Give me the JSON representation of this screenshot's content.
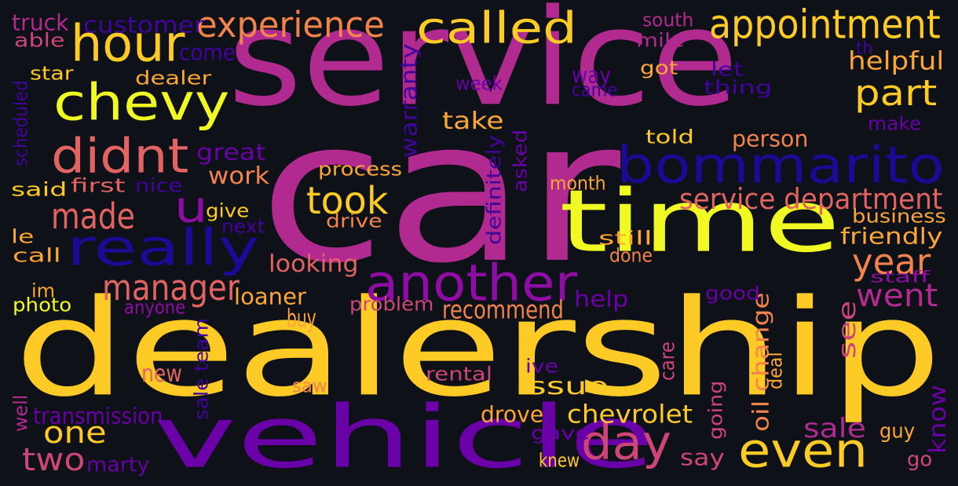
{
  "background": "#0e1117",
  "palette": {
    "yellow": "#f0f921",
    "gold": "#fdca26",
    "amber": "#fca636",
    "orange": "#f2844b",
    "salmon": "#e16462",
    "rose": "#cc4778",
    "magenta": "#b12a90",
    "purple": "#8f0da4",
    "violet": "#6a00a8",
    "indigo": "#41049d",
    "navy": "#1a0a94"
  },
  "words": [
    {
      "text": "service",
      "color": "magenta"
    },
    {
      "text": "car",
      "color": "magenta"
    },
    {
      "text": "dealership",
      "color": "gold"
    },
    {
      "text": "time",
      "color": "yellow"
    },
    {
      "text": "vehicle",
      "color": "violet"
    },
    {
      "text": "bommarito",
      "color": "navy"
    },
    {
      "text": "another",
      "color": "purple"
    },
    {
      "text": "really",
      "color": "navy"
    },
    {
      "text": "chevy",
      "color": "yellow"
    },
    {
      "text": "didnt",
      "color": "salmon"
    },
    {
      "text": "hour",
      "color": "gold"
    },
    {
      "text": "called",
      "color": "gold"
    },
    {
      "text": "appointment",
      "color": "gold"
    },
    {
      "text": "experience",
      "color": "orange"
    },
    {
      "text": "even",
      "color": "gold"
    },
    {
      "text": "day",
      "color": "rose"
    },
    {
      "text": "u",
      "color": "purple"
    },
    {
      "text": "took",
      "color": "gold"
    },
    {
      "text": "made",
      "color": "salmon"
    },
    {
      "text": "part",
      "color": "gold"
    },
    {
      "text": "manager",
      "color": "salmon"
    },
    {
      "text": "year",
      "color": "orange"
    },
    {
      "text": "went",
      "color": "magenta"
    },
    {
      "text": "service department",
      "color": "salmon"
    },
    {
      "text": "one",
      "color": "gold"
    },
    {
      "text": "two",
      "color": "rose"
    },
    {
      "text": "customer",
      "color": "indigo"
    },
    {
      "text": "truck",
      "color": "magenta"
    },
    {
      "text": "south",
      "color": "magenta"
    },
    {
      "text": "able",
      "color": "rose"
    },
    {
      "text": "mile",
      "color": "magenta"
    },
    {
      "text": "come",
      "color": "indigo"
    },
    {
      "text": "th",
      "color": "indigo"
    },
    {
      "text": "star",
      "color": "gold"
    },
    {
      "text": "warranty",
      "color": "indigo"
    },
    {
      "text": "got",
      "color": "amber"
    },
    {
      "text": "let",
      "color": "indigo"
    },
    {
      "text": "helpful",
      "color": "amber"
    },
    {
      "text": "scheduled",
      "color": "indigo"
    },
    {
      "text": "dealer",
      "color": "amber"
    },
    {
      "text": "way",
      "color": "violet"
    },
    {
      "text": "thing",
      "color": "indigo"
    },
    {
      "text": "week",
      "color": "violet"
    },
    {
      "text": "came",
      "color": "indigo"
    },
    {
      "text": "take",
      "color": "amber"
    },
    {
      "text": "make",
      "color": "violet"
    },
    {
      "text": "told",
      "color": "gold"
    },
    {
      "text": "person",
      "color": "orange"
    },
    {
      "text": "great",
      "color": "violet"
    },
    {
      "text": "definitely",
      "color": "indigo"
    },
    {
      "text": "asked",
      "color": "violet"
    },
    {
      "text": "process",
      "color": "amber"
    },
    {
      "text": "work",
      "color": "orange"
    },
    {
      "text": "said",
      "color": "gold"
    },
    {
      "text": "first",
      "color": "salmon"
    },
    {
      "text": "nice",
      "color": "indigo"
    },
    {
      "text": "month",
      "color": "amber"
    },
    {
      "text": "give",
      "color": "gold"
    },
    {
      "text": "drive",
      "color": "orange"
    },
    {
      "text": "business",
      "color": "amber"
    },
    {
      "text": "next",
      "color": "indigo"
    },
    {
      "text": "friendly",
      "color": "amber"
    },
    {
      "text": "le",
      "color": "amber"
    },
    {
      "text": "call",
      "color": "amber"
    },
    {
      "text": "still",
      "color": "amber"
    },
    {
      "text": "done",
      "color": "orange"
    },
    {
      "text": "looking",
      "color": "salmon"
    },
    {
      "text": "oil change",
      "color": "orange"
    },
    {
      "text": "staff",
      "color": "purple"
    },
    {
      "text": "im",
      "color": "amber"
    },
    {
      "text": "photo",
      "color": "yellow"
    },
    {
      "text": "anyone",
      "color": "purple"
    },
    {
      "text": "loaner",
      "color": "amber"
    },
    {
      "text": "good",
      "color": "violet"
    },
    {
      "text": "problem",
      "color": "rose"
    },
    {
      "text": "recommend",
      "color": "orange"
    },
    {
      "text": "help",
      "color": "violet"
    },
    {
      "text": "buy",
      "color": "amber"
    },
    {
      "text": "see",
      "color": "rose"
    },
    {
      "text": "sale team",
      "color": "indigo"
    },
    {
      "text": "new",
      "color": "salmon"
    },
    {
      "text": "ive",
      "color": "violet"
    },
    {
      "text": "rental",
      "color": "rose"
    },
    {
      "text": "care",
      "color": "rose"
    },
    {
      "text": "deal",
      "color": "amber"
    },
    {
      "text": "saw",
      "color": "orange"
    },
    {
      "text": "issue",
      "color": "gold"
    },
    {
      "text": "going",
      "color": "rose"
    },
    {
      "text": "know",
      "color": "violet"
    },
    {
      "text": "transmission",
      "color": "violet"
    },
    {
      "text": "drove",
      "color": "amber"
    },
    {
      "text": "chevrolet",
      "color": "gold"
    },
    {
      "text": "well",
      "color": "magenta"
    },
    {
      "text": "sale",
      "color": "magenta"
    },
    {
      "text": "guy",
      "color": "amber"
    },
    {
      "text": "gave",
      "color": "violet"
    },
    {
      "text": "marty",
      "color": "violet"
    },
    {
      "text": "say",
      "color": "rose"
    },
    {
      "text": "knew",
      "color": "gold"
    },
    {
      "text": "go",
      "color": "rose"
    }
  ]
}
